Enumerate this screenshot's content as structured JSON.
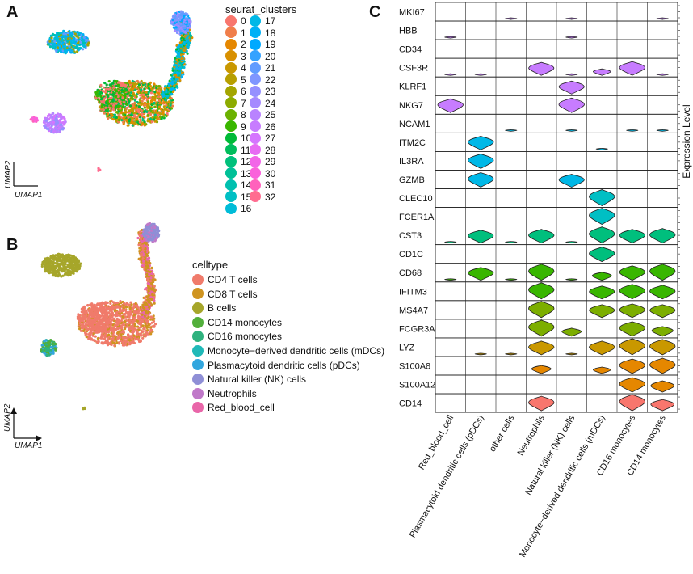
{
  "panels": {
    "a": {
      "letter": "A"
    },
    "b": {
      "letter": "B"
    },
    "c": {
      "letter": "C"
    }
  },
  "umap_a": {
    "xlabel": "UMAP1",
    "ylabel": "UMAP2"
  },
  "umap_b": {
    "xlabel": "UMAP1",
    "ylabel": "UMAP2"
  },
  "cluster_legend": {
    "title": "seurat_clusters",
    "items": [
      {
        "label": "0",
        "color": "#F8766D"
      },
      {
        "label": "1",
        "color": "#F07E4A"
      },
      {
        "label": "2",
        "color": "#E58700"
      },
      {
        "label": "3",
        "color": "#D89000"
      },
      {
        "label": "4",
        "color": "#C99800"
      },
      {
        "label": "5",
        "color": "#B79F00"
      },
      {
        "label": "6",
        "color": "#A3A500"
      },
      {
        "label": "7",
        "color": "#8CAB00"
      },
      {
        "label": "8",
        "color": "#6BB100"
      },
      {
        "label": "9",
        "color": "#39B600"
      },
      {
        "label": "10",
        "color": "#00BA38"
      },
      {
        "label": "11",
        "color": "#00BD5C"
      },
      {
        "label": "12",
        "color": "#00C07B"
      },
      {
        "label": "13",
        "color": "#00C097"
      },
      {
        "label": "14",
        "color": "#00C0AF"
      },
      {
        "label": "15",
        "color": "#00BFC4"
      },
      {
        "label": "16",
        "color": "#00BCD8"
      },
      {
        "label": "17",
        "color": "#00B8E7"
      },
      {
        "label": "18",
        "color": "#00B0F6"
      },
      {
        "label": "19",
        "color": "#00A9FF"
      },
      {
        "label": "20",
        "color": "#35A2FF"
      },
      {
        "label": "21",
        "color": "#619CFF"
      },
      {
        "label": "22",
        "color": "#7F96FF"
      },
      {
        "label": "23",
        "color": "#9590FF"
      },
      {
        "label": "24",
        "color": "#A58AFF"
      },
      {
        "label": "25",
        "color": "#B983FF"
      },
      {
        "label": "26",
        "color": "#C77CFF"
      },
      {
        "label": "27",
        "color": "#D575FE"
      },
      {
        "label": "28",
        "color": "#E76BF3"
      },
      {
        "label": "29",
        "color": "#F265E8"
      },
      {
        "label": "30",
        "color": "#FA62DB"
      },
      {
        "label": "31",
        "color": "#FF62BC"
      },
      {
        "label": "32",
        "color": "#FF6C90"
      }
    ]
  },
  "celltype_legend": {
    "title": "celltype",
    "items": [
      {
        "label": "CD4 T cells",
        "color": "#F07B6B"
      },
      {
        "label": "CD8 T cells",
        "color": "#CF9420"
      },
      {
        "label": "B cells",
        "color": "#A6A62A"
      },
      {
        "label": "CD14 monocytes",
        "color": "#52AF3B"
      },
      {
        "label": "CD16 monocytes",
        "color": "#2FB27E"
      },
      {
        "label": "Monocyte−derived dendritic cells (mDCs)",
        "color": "#20B9B8"
      },
      {
        "label": "Plasmacytoid dendritic cells (pDCs)",
        "color": "#32A6DE"
      },
      {
        "label": "Natural killer (NK) cells",
        "color": "#8F8FD6"
      },
      {
        "label": "Neutrophils",
        "color": "#C079C9"
      },
      {
        "label": "Red_blood_cell",
        "color": "#E966A9"
      }
    ]
  },
  "chart_data": {
    "type": "stacked_violin",
    "ylabel": "Expression Level",
    "genes": [
      "MKI67",
      "HBB",
      "CD34",
      "CSF3R",
      "KLRF1",
      "NKG7",
      "NCAM1",
      "ITM2C",
      "IL3RA",
      "GZMB",
      "CLEC10",
      "FCER1A",
      "CST3",
      "CD1C",
      "CD68",
      "IFITM3",
      "MS4A7",
      "FCGR3A",
      "LYZ",
      "S100A8",
      "S100A12",
      "CD14"
    ],
    "gene_colors": [
      "#C77CFF",
      "#C77CFF",
      "#C77CFF",
      "#C77CFF",
      "#C77CFF",
      "#C77CFF",
      "#00B8E7",
      "#00B8E7",
      "#00B8E7",
      "#00B8E7",
      "#00BFC4",
      "#00BFC4",
      "#00BF7D",
      "#00BF7D",
      "#39B600",
      "#39B600",
      "#7CAE00",
      "#7CAE00",
      "#C99800",
      "#E58700",
      "#E58700",
      "#F8766D"
    ],
    "cell_types": [
      "Red_blood_cell",
      "Plasmacytoid dendritic cells (pDCs)",
      "other cells",
      "Neutrophils",
      "Natural killer (NK) cells",
      "Monocyte−derived dendritic cells (mDCs)",
      "CD16 monocytes",
      "CD14 monocytes"
    ],
    "expression": [
      [
        0.0,
        0.0,
        0.1,
        0.0,
        0.1,
        0.0,
        0.0,
        0.1
      ],
      [
        0.1,
        0.0,
        0.0,
        0.0,
        0.1,
        0.0,
        0.0,
        0.0
      ],
      [
        0.0,
        0.0,
        0.0,
        0.0,
        0.0,
        0.0,
        0.0,
        0.0
      ],
      [
        0.1,
        0.1,
        0.0,
        0.8,
        0.1,
        0.4,
        0.85,
        0.1
      ],
      [
        0.0,
        0.0,
        0.0,
        0.0,
        0.8,
        0.0,
        0.0,
        0.0
      ],
      [
        0.85,
        0.0,
        0.0,
        0.0,
        0.9,
        0.0,
        0.0,
        0.0
      ],
      [
        0.0,
        0.0,
        0.1,
        0.0,
        0.1,
        0.0,
        0.1,
        0.1
      ],
      [
        0.0,
        0.85,
        0.0,
        0.0,
        0.0,
        0.1,
        0.0,
        0.0
      ],
      [
        0.0,
        0.9,
        0.0,
        0.0,
        0.0,
        0.0,
        0.0,
        0.0
      ],
      [
        0.0,
        0.9,
        0.0,
        0.0,
        0.8,
        0.0,
        0.0,
        0.0
      ],
      [
        0.0,
        0.0,
        0.0,
        0.0,
        0.0,
        1.0,
        0.0,
        0.0
      ],
      [
        0.0,
        0.0,
        0.0,
        0.0,
        0.0,
        1.0,
        0.0,
        0.0
      ],
      [
        0.1,
        0.8,
        0.1,
        0.85,
        0.1,
        1.0,
        0.85,
        0.9
      ],
      [
        0.0,
        0.0,
        0.0,
        0.0,
        0.0,
        0.9,
        0.0,
        0.0
      ],
      [
        0.1,
        0.8,
        0.1,
        1.0,
        0.1,
        0.5,
        0.9,
        1.0
      ],
      [
        0.0,
        0.0,
        0.0,
        1.0,
        0.0,
        0.8,
        0.9,
        0.85
      ],
      [
        0.0,
        0.0,
        0.0,
        1.0,
        0.0,
        0.8,
        0.85,
        0.8
      ],
      [
        0.0,
        0.0,
        0.0,
        1.0,
        0.5,
        0.0,
        0.9,
        0.6
      ],
      [
        0.0,
        0.1,
        0.1,
        0.85,
        0.1,
        0.85,
        1.0,
        0.95
      ],
      [
        0.0,
        0.0,
        0.0,
        0.5,
        0.0,
        0.4,
        0.9,
        0.95
      ],
      [
        0.0,
        0.0,
        0.0,
        0.0,
        0.0,
        0.0,
        0.9,
        0.7
      ],
      [
        0.0,
        0.0,
        0.0,
        0.9,
        0.0,
        0.0,
        1.0,
        0.7
      ]
    ]
  }
}
